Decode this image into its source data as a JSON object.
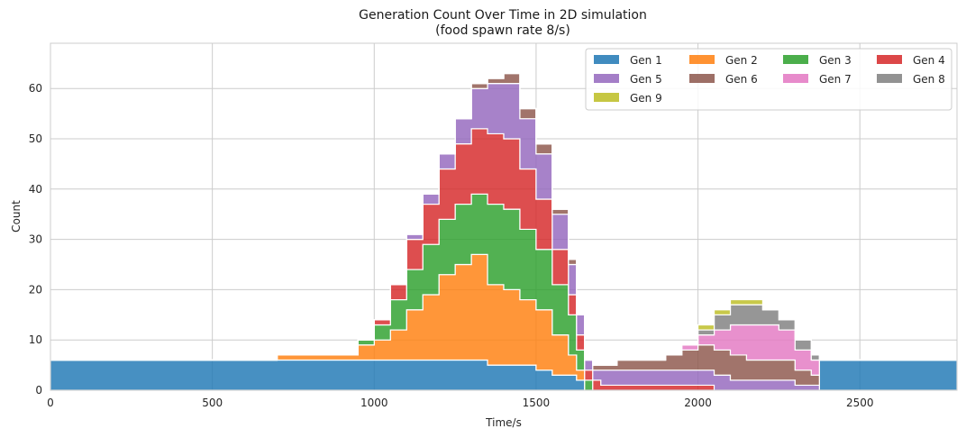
{
  "chart_data": {
    "type": "area",
    "title": "Generation Count Over Time in 2D simulation",
    "subtitle": "(food spawn rate 8/s)",
    "xlabel": "Time/s",
    "ylabel": "Count",
    "xlim": [
      0,
      2800
    ],
    "ylim": [
      0,
      69
    ],
    "xticks": [
      0,
      500,
      1000,
      1500,
      2000,
      2500
    ],
    "yticks": [
      0,
      10,
      20,
      30,
      40,
      50,
      60
    ],
    "grid": true,
    "legend": {
      "placement": "top-right",
      "columns": 4
    },
    "x": [
      0,
      100,
      200,
      300,
      400,
      500,
      600,
      650,
      700,
      750,
      800,
      850,
      900,
      950,
      1000,
      1050,
      1100,
      1150,
      1200,
      1250,
      1300,
      1350,
      1400,
      1450,
      1500,
      1550,
      1600,
      1625,
      1650,
      1675,
      1700,
      1725,
      1750,
      1800,
      1850,
      1900,
      1950,
      2000,
      2050,
      2100,
      2150,
      2200,
      2250,
      2300,
      2350,
      2375,
      2400,
      2450,
      2500,
      2600,
      2700,
      2800
    ],
    "series": [
      {
        "name": "Gen 1",
        "color": "#1f77b4",
        "values": [
          6,
          6,
          6,
          6,
          6,
          6,
          6,
          6,
          6,
          6,
          6,
          6,
          6,
          6,
          6,
          6,
          6,
          6,
          6,
          6,
          6,
          5,
          5,
          5,
          4,
          3,
          3,
          2,
          0,
          0,
          0,
          0,
          0,
          0,
          0,
          0,
          0,
          0,
          0,
          0,
          0,
          0,
          0,
          0,
          0,
          6,
          6,
          6,
          6,
          6,
          6,
          6
        ]
      },
      {
        "name": "Gen 2",
        "color": "#ff7f0e",
        "values": [
          0,
          0,
          0,
          0,
          0,
          0,
          0,
          0,
          1,
          1,
          1,
          1,
          1,
          3,
          4,
          6,
          10,
          13,
          17,
          19,
          21,
          16,
          15,
          13,
          12,
          8,
          4,
          2,
          0,
          0,
          0,
          0,
          0,
          0,
          0,
          0,
          0,
          0,
          0,
          0,
          0,
          0,
          0,
          0,
          0,
          0,
          0,
          0,
          0,
          0,
          0,
          0
        ]
      },
      {
        "name": "Gen 3",
        "color": "#2ca02c",
        "values": [
          0,
          0,
          0,
          0,
          0,
          0,
          0,
          0,
          0,
          0,
          0,
          0,
          0,
          1,
          3,
          6,
          8,
          10,
          11,
          12,
          12,
          16,
          16,
          14,
          12,
          10,
          8,
          4,
          2,
          0,
          0,
          0,
          0,
          0,
          0,
          0,
          0,
          0,
          0,
          0,
          0,
          0,
          0,
          0,
          0,
          0,
          0,
          0,
          0,
          0,
          0,
          0
        ]
      },
      {
        "name": "Gen 4",
        "color": "#d62728",
        "values": [
          0,
          0,
          0,
          0,
          0,
          0,
          0,
          0,
          0,
          0,
          0,
          0,
          0,
          0,
          1,
          3,
          6,
          8,
          10,
          12,
          13,
          14,
          14,
          12,
          10,
          7,
          4,
          3,
          2,
          2,
          1,
          1,
          1,
          1,
          1,
          1,
          1,
          1,
          0,
          0,
          0,
          0,
          0,
          0,
          0,
          0,
          0,
          0,
          0,
          0,
          0,
          0
        ]
      },
      {
        "name": "Gen 5",
        "color": "#9467bd",
        "values": [
          0,
          0,
          0,
          0,
          0,
          0,
          0,
          0,
          0,
          0,
          0,
          0,
          0,
          0,
          0,
          0,
          1,
          2,
          3,
          5,
          8,
          10,
          11,
          10,
          9,
          7,
          6,
          4,
          2,
          2,
          3,
          3,
          3,
          3,
          3,
          3,
          3,
          3,
          3,
          2,
          2,
          2,
          2,
          1,
          1,
          0,
          0,
          0,
          0,
          0,
          0,
          0
        ]
      },
      {
        "name": "Gen 6",
        "color": "#8c564b",
        "values": [
          0,
          0,
          0,
          0,
          0,
          0,
          0,
          0,
          0,
          0,
          0,
          0,
          0,
          0,
          0,
          0,
          0,
          0,
          0,
          0,
          1,
          1,
          2,
          2,
          2,
          1,
          1,
          0,
          0,
          1,
          1,
          1,
          2,
          2,
          2,
          3,
          4,
          5,
          5,
          5,
          4,
          4,
          4,
          3,
          2,
          0,
          0,
          0,
          0,
          0,
          0,
          0
        ]
      },
      {
        "name": "Gen 7",
        "color": "#e377c2",
        "values": [
          0,
          0,
          0,
          0,
          0,
          0,
          0,
          0,
          0,
          0,
          0,
          0,
          0,
          0,
          0,
          0,
          0,
          0,
          0,
          0,
          0,
          0,
          0,
          0,
          0,
          0,
          0,
          0,
          0,
          0,
          0,
          0,
          0,
          0,
          0,
          0,
          1,
          2,
          4,
          6,
          7,
          7,
          6,
          4,
          3,
          0,
          0,
          0,
          0,
          0,
          0,
          0
        ]
      },
      {
        "name": "Gen 8",
        "color": "#7f7f7f",
        "values": [
          0,
          0,
          0,
          0,
          0,
          0,
          0,
          0,
          0,
          0,
          0,
          0,
          0,
          0,
          0,
          0,
          0,
          0,
          0,
          0,
          0,
          0,
          0,
          0,
          0,
          0,
          0,
          0,
          0,
          0,
          0,
          0,
          0,
          0,
          0,
          0,
          0,
          1,
          3,
          4,
          4,
          3,
          2,
          2,
          1,
          0,
          0,
          0,
          0,
          0,
          0,
          0
        ]
      },
      {
        "name": "Gen 9",
        "color": "#bcbd22",
        "values": [
          0,
          0,
          0,
          0,
          0,
          0,
          0,
          0,
          0,
          0,
          0,
          0,
          0,
          0,
          0,
          0,
          0,
          0,
          0,
          0,
          0,
          0,
          0,
          0,
          0,
          0,
          0,
          0,
          0,
          0,
          0,
          0,
          0,
          0,
          0,
          0,
          0,
          1,
          1,
          1,
          1,
          0,
          0,
          0,
          0,
          0,
          0,
          0,
          0,
          0,
          0,
          0
        ]
      }
    ]
  }
}
